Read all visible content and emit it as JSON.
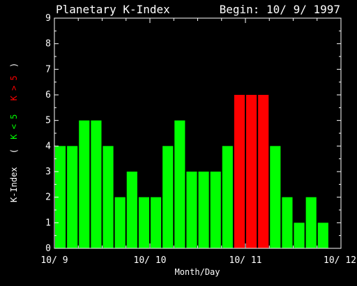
{
  "title": "Planetary K-Index",
  "begin_label": "Begin: 10/ 9/ 1997",
  "xlabel": "Month/Day",
  "ylabel": {
    "main": "K-Index",
    "open_paren": "(",
    "low": "K < 5",
    "high": "K > 5",
    "close_paren": ")"
  },
  "colors": {
    "background": "#000000",
    "axes": "#ffffff",
    "low": "#00ff00",
    "high": "#ff0000"
  },
  "chart_data": {
    "type": "bar",
    "x_tick_labels": [
      "10/ 9",
      "10/ 10",
      "10/ 11",
      "10/ 12"
    ],
    "bars_per_day": 8,
    "values": [
      4,
      4,
      5,
      5,
      4,
      2,
      3,
      2,
      2,
      4,
      5,
      3,
      3,
      3,
      4,
      6,
      6,
      6,
      4,
      2,
      1,
      2,
      1
    ],
    "threshold": 5,
    "ylim": [
      0,
      9
    ],
    "y_ticks": [
      "0",
      "1",
      "2",
      "3",
      "4",
      "5",
      "6",
      "7",
      "8",
      "9"
    ],
    "grid": false,
    "legend": "none"
  }
}
